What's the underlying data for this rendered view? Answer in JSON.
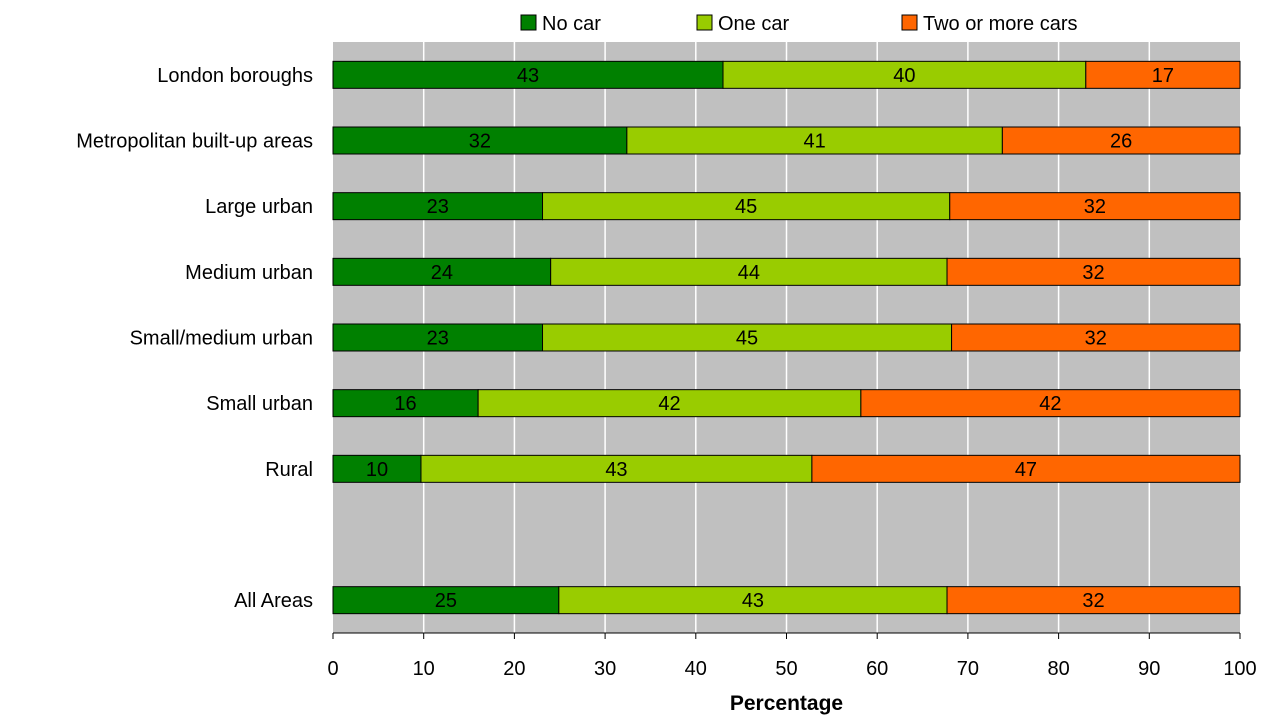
{
  "chart_data": {
    "type": "bar",
    "orientation": "horizontal",
    "stacked": true,
    "title": "",
    "xlabel": "Percentage",
    "ylabel": "",
    "xlim": [
      0,
      100
    ],
    "xticks": [
      0,
      10,
      20,
      30,
      40,
      50,
      60,
      70,
      80,
      90,
      100
    ],
    "grid": "vertical",
    "legend_position": "top",
    "categories": [
      "London boroughs",
      "Metropolitan built-up areas",
      "Large urban",
      "Medium urban",
      "Small/medium urban",
      "Small urban",
      "Rural",
      "",
      "All Areas"
    ],
    "series": [
      {
        "name": "No car",
        "color": "#008000",
        "values": [
          43,
          32,
          23,
          24,
          23,
          16,
          10,
          null,
          25
        ]
      },
      {
        "name": "One car",
        "color": "#99cc00",
        "values": [
          40,
          41,
          45,
          44,
          45,
          42,
          43,
          null,
          43
        ]
      },
      {
        "name": "Two or more cars",
        "color": "#ff6600",
        "values": [
          17,
          26,
          32,
          32,
          32,
          42,
          47,
          null,
          32
        ]
      }
    ],
    "bar_extents": [
      [
        43.0,
        40.0,
        17.0
      ],
      [
        32.4,
        41.4,
        26.2
      ],
      [
        23.1,
        44.9,
        32.0
      ],
      [
        24.0,
        43.7,
        32.3
      ],
      [
        23.1,
        45.1,
        31.8
      ],
      [
        16.0,
        42.2,
        41.8
      ],
      [
        9.7,
        43.1,
        47.2
      ],
      null,
      [
        24.9,
        42.8,
        32.3
      ]
    ],
    "plot_background": "#c0c0c0",
    "grid_color": "#ffffff"
  }
}
